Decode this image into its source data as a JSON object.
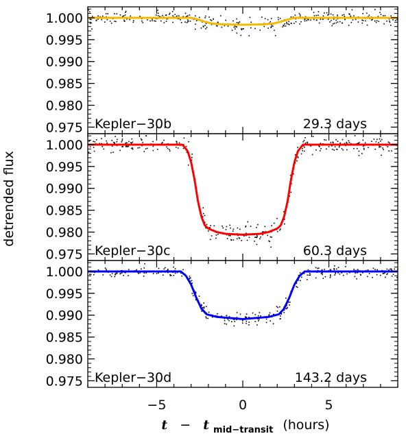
{
  "chart_data": {
    "type": "line",
    "xlabel": {
      "t": "t",
      "dash": "−",
      "tsub_main": "t",
      "tsub": "mid−transit",
      "unit": "(hours)"
    },
    "ylabel": "detrended flux",
    "xlim": [
      -9,
      9
    ],
    "ylim": [
      0.9735,
      1.0025
    ],
    "xticks": [
      -5,
      0,
      5
    ],
    "xtick_labels": [
      "−5",
      "0",
      "5"
    ],
    "yticks": [
      1.0,
      0.995,
      0.99,
      0.985,
      0.98,
      0.975
    ],
    "ytick_labels": [
      "1.000",
      "0.995",
      "0.990",
      "0.985",
      "0.980",
      "0.975"
    ],
    "panels": [
      {
        "planet": "Kepler−30b",
        "period": "29.3 days",
        "color": "#f5b800",
        "model": {
          "x": [
            -9,
            -3.0,
            -2.6,
            -2.2,
            -1.8,
            -1.2,
            0,
            1.2,
            1.8,
            2.2,
            2.6,
            3.0,
            9
          ],
          "y": [
            1.0,
            1.0,
            0.9996,
            0.9991,
            0.9987,
            0.9985,
            0.9984,
            0.9985,
            0.9987,
            0.9991,
            0.9996,
            1.0,
            1.0
          ]
        },
        "scatter": 0.0007
      },
      {
        "planet": "Kepler−30c",
        "period": "60.3 days",
        "color": "#ff0000",
        "model": {
          "x": [
            -9,
            -3.5,
            -3.2,
            -3.0,
            -2.8,
            -2.6,
            -2.4,
            -2.2,
            -2.0,
            -1.5,
            -1.0,
            0,
            1.0,
            1.5,
            2.0,
            2.2,
            2.4,
            2.6,
            2.8,
            3.0,
            3.2,
            3.5,
            9
          ],
          "y": [
            1.0,
            1.0,
            0.9985,
            0.996,
            0.992,
            0.987,
            0.9835,
            0.9815,
            0.9808,
            0.98,
            0.9796,
            0.9794,
            0.9796,
            0.98,
            0.9808,
            0.9815,
            0.9835,
            0.987,
            0.992,
            0.996,
            0.9985,
            1.0,
            1.0
          ]
        },
        "scatter": 0.0009
      },
      {
        "planet": "Kepler−30d",
        "period": "143.2 days",
        "color": "#0000ff",
        "model": {
          "x": [
            -9,
            -3.6,
            -3.3,
            -3.0,
            -2.7,
            -2.4,
            -2.1,
            -1.5,
            0,
            1.5,
            2.1,
            2.4,
            2.7,
            3.0,
            3.3,
            3.6,
            9
          ],
          "y": [
            1.0,
            1.0,
            0.999,
            0.997,
            0.994,
            0.9915,
            0.9902,
            0.9896,
            0.9891,
            0.9896,
            0.9902,
            0.9915,
            0.994,
            0.997,
            0.999,
            1.0,
            1.0
          ]
        },
        "scatter": 0.0006
      }
    ]
  }
}
